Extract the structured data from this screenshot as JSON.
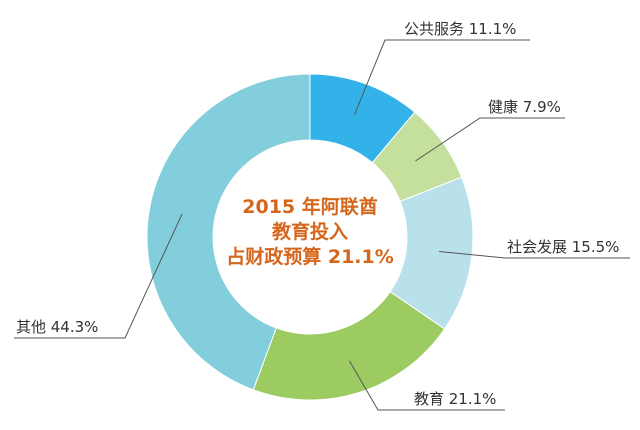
{
  "chart_data": {
    "type": "pie",
    "title_lines": [
      "2015 年阿联酋",
      "教育投入",
      "占财政预算 21.1%"
    ],
    "slices": [
      {
        "label": "公共服务",
        "value": 11.1,
        "display": "11.1%",
        "color": "#33b2ea"
      },
      {
        "label": "健康",
        "value": 7.9,
        "display": "7.9%",
        "color": "#c5e09d"
      },
      {
        "label": "社会发展",
        "value": 15.5,
        "display": "15.5%",
        "color": "#b8e1ec"
      },
      {
        "label": "教育",
        "value": 21.1,
        "display": "21.1%",
        "color": "#9ccb62"
      },
      {
        "label": "其他",
        "value": 44.3,
        "display": "44.3%",
        "color": "#82cedd"
      }
    ]
  }
}
